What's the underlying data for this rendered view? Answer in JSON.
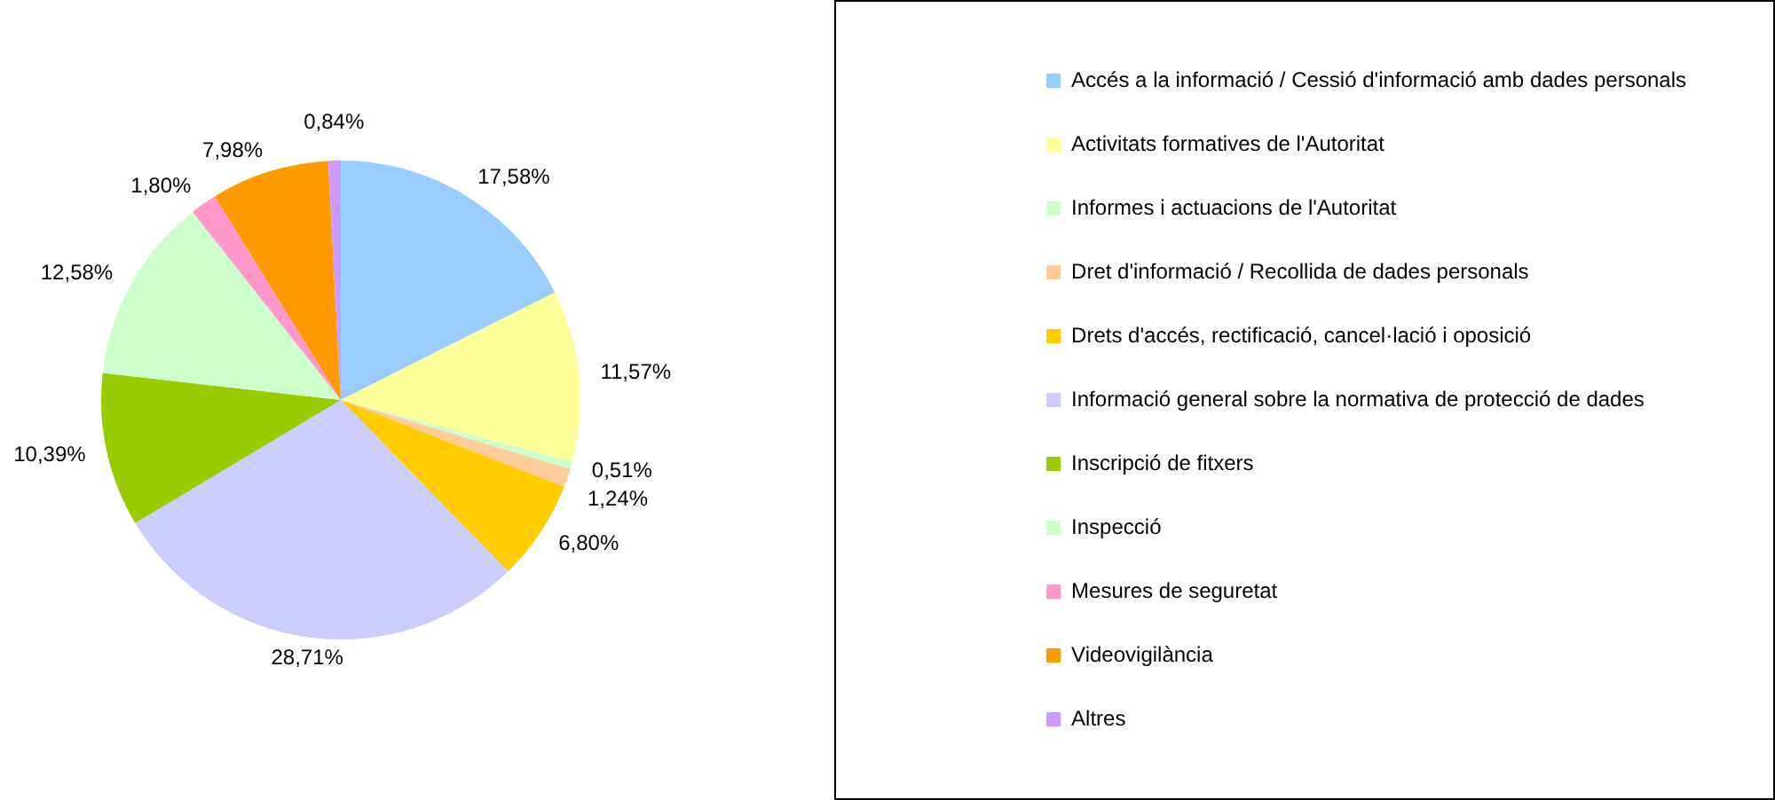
{
  "chart_data": {
    "type": "pie",
    "categories": [
      "Accés a la informació / Cessió d'informació amb dades personals",
      "Activitats formatives de l'Autoritat",
      "Informes i actuacions de l'Autoritat",
      "Dret d'informació / Recollida de dades personals",
      "Drets d'accés, rectificació, cancel·lació i oposició",
      "Informació general sobre la normativa de protecció de dades",
      "Inscripció de fitxers",
      "Inspecció",
      "Mesures de seguretat",
      "Videovigilància",
      "Altres"
    ],
    "values": [
      17.58,
      11.57,
      0.51,
      1.24,
      6.8,
      28.71,
      10.39,
      12.58,
      1.8,
      7.98,
      0.84
    ],
    "value_labels": [
      "17,58%",
      "11,57%",
      "0,51%",
      "1,24%",
      "6,80%",
      "28,71%",
      "10,39%",
      "12,58%",
      "1,80%",
      "7,98%",
      "0,84%"
    ],
    "colors": [
      "#99ccff",
      "#ffff99",
      "#ccffcc",
      "#ffcc99",
      "#ffcc00",
      "#ccccff",
      "#99cc00",
      "#ccffcc",
      "#ff99cc",
      "#ff9900",
      "#cc99ff"
    ],
    "legend": "right"
  }
}
